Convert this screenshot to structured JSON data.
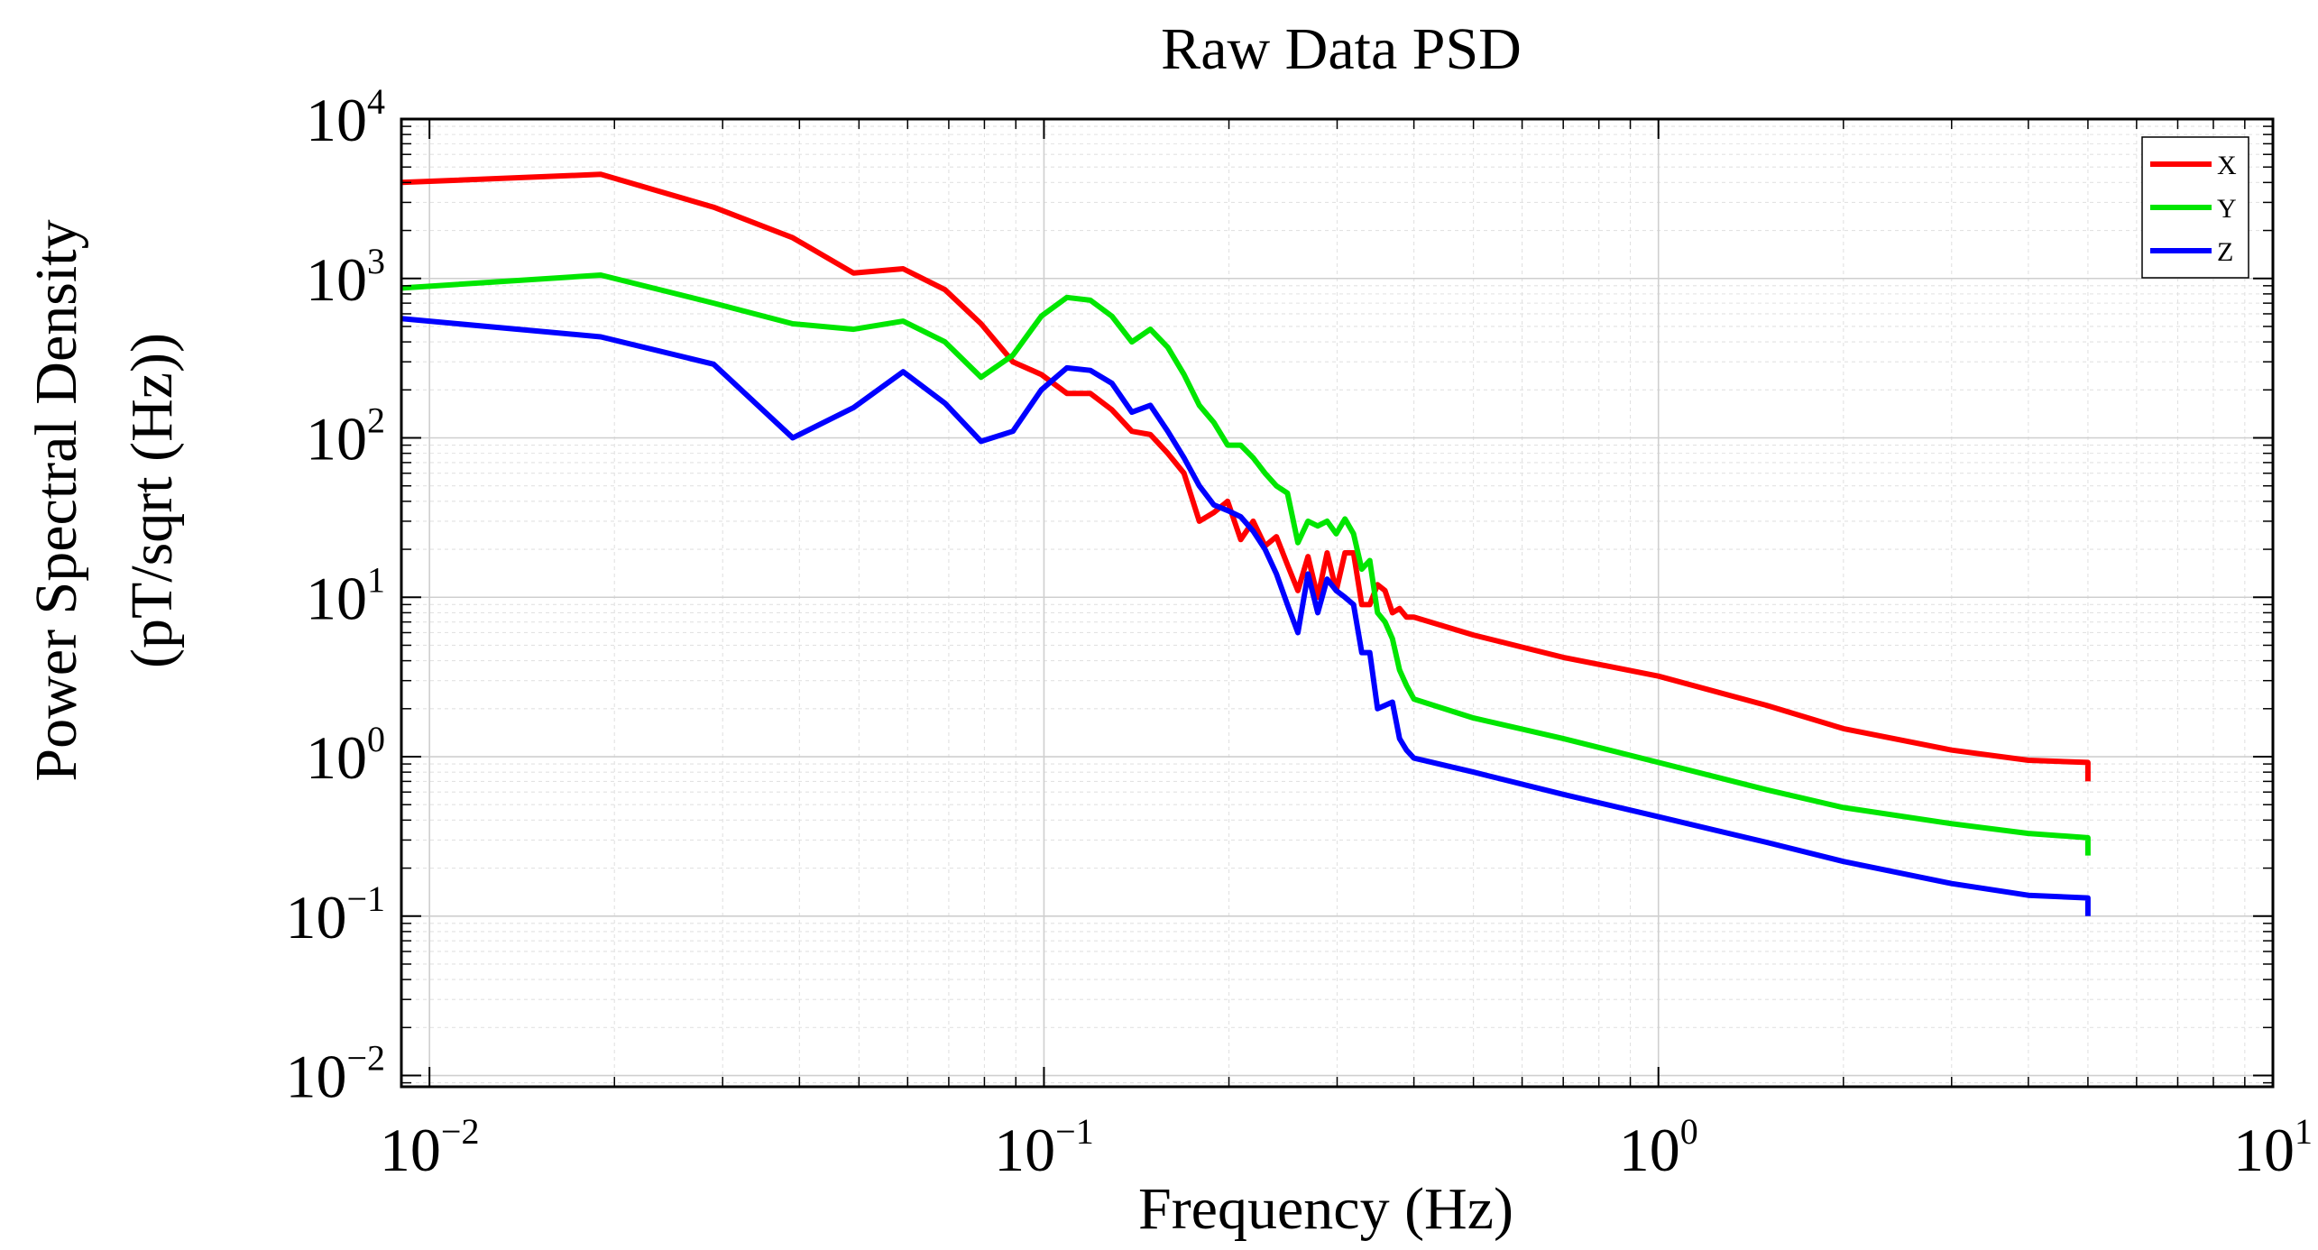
{
  "chart_data": {
    "type": "line",
    "title": "Raw Data PSD",
    "xlabel": "Frequency (Hz)",
    "ylabel_line1": "Power Spectral Density",
    "ylabel_line2": "(pT/sqrt (Hz))",
    "xscale": "log",
    "yscale": "log",
    "xlim": [
      0.009,
      10
    ],
    "ylim": [
      0.0085,
      10000
    ],
    "grid": true,
    "legend_position": "top-right",
    "x_ticks": [
      {
        "base": "10",
        "exp": "−2",
        "value": 0.01
      },
      {
        "base": "10",
        "exp": "−1",
        "value": 0.1
      },
      {
        "base": "10",
        "exp": "0",
        "value": 1
      },
      {
        "base": "10",
        "exp": "1",
        "value": 10
      }
    ],
    "y_ticks": [
      {
        "base": "10",
        "exp": "4",
        "value": 10000
      },
      {
        "base": "10",
        "exp": "3",
        "value": 1000
      },
      {
        "base": "10",
        "exp": "2",
        "value": 100
      },
      {
        "base": "10",
        "exp": "1",
        "value": 10
      },
      {
        "base": "10",
        "exp": "0",
        "value": 1
      },
      {
        "base": "10",
        "exp": "−1",
        "value": 0.1
      },
      {
        "base": "10",
        "exp": "−2",
        "value": 0.01
      }
    ],
    "series": [
      {
        "name": "X",
        "color": "#ff0000",
        "x": [
          0.009,
          0.019,
          0.029,
          0.039,
          0.049,
          0.059,
          0.069,
          0.079,
          0.089,
          0.099,
          0.109,
          0.119,
          0.129,
          0.139,
          0.149,
          0.159,
          0.169,
          0.179,
          0.189,
          0.199,
          0.209,
          0.219,
          0.229,
          0.239,
          0.249,
          0.259,
          0.269,
          0.279,
          0.289,
          0.299,
          0.309,
          0.319,
          0.329,
          0.339,
          0.349,
          0.359,
          0.369,
          0.379,
          0.389,
          0.4,
          0.5,
          0.7,
          1.0,
          1.5,
          2.0,
          3.0,
          4.0,
          5.0,
          5.0
        ],
        "y": [
          4000,
          4500,
          2800,
          1800,
          1080,
          1150,
          850,
          520,
          300,
          250,
          190,
          190,
          150,
          110,
          105,
          80,
          60,
          30,
          34,
          40,
          23,
          30,
          21,
          24,
          16,
          11,
          18,
          10,
          19,
          11,
          19,
          19,
          9,
          9,
          12,
          11,
          8,
          8.5,
          7.5,
          7.5,
          5.8,
          4.2,
          3.2,
          2.1,
          1.5,
          1.1,
          0.95,
          0.92,
          0.7
        ]
      },
      {
        "name": "Y",
        "color": "#00e600",
        "x": [
          0.009,
          0.019,
          0.029,
          0.039,
          0.049,
          0.059,
          0.069,
          0.079,
          0.089,
          0.099,
          0.109,
          0.119,
          0.129,
          0.139,
          0.149,
          0.159,
          0.169,
          0.179,
          0.189,
          0.199,
          0.209,
          0.219,
          0.229,
          0.239,
          0.249,
          0.259,
          0.269,
          0.279,
          0.289,
          0.299,
          0.309,
          0.319,
          0.329,
          0.339,
          0.349,
          0.359,
          0.369,
          0.379,
          0.389,
          0.4,
          0.5,
          0.7,
          1.0,
          1.5,
          2.0,
          3.0,
          4.0,
          5.0,
          5.0
        ],
        "y": [
          870,
          1050,
          700,
          520,
          480,
          540,
          400,
          240,
          330,
          580,
          760,
          730,
          580,
          400,
          480,
          370,
          250,
          160,
          125,
          90,
          90,
          75,
          60,
          50,
          45,
          22,
          30,
          28,
          30,
          25,
          31,
          25,
          15,
          17,
          8,
          7,
          5.5,
          3.5,
          2.8,
          2.3,
          1.75,
          1.3,
          0.92,
          0.62,
          0.48,
          0.38,
          0.33,
          0.31,
          0.24
        ]
      },
      {
        "name": "Z",
        "color": "#0000ff",
        "x": [
          0.009,
          0.019,
          0.029,
          0.039,
          0.049,
          0.059,
          0.069,
          0.079,
          0.089,
          0.099,
          0.109,
          0.119,
          0.129,
          0.139,
          0.149,
          0.159,
          0.169,
          0.179,
          0.189,
          0.199,
          0.209,
          0.219,
          0.229,
          0.239,
          0.249,
          0.259,
          0.269,
          0.279,
          0.289,
          0.299,
          0.309,
          0.319,
          0.329,
          0.339,
          0.349,
          0.359,
          0.369,
          0.379,
          0.389,
          0.4,
          0.5,
          0.7,
          1.0,
          1.5,
          2.0,
          3.0,
          4.0,
          5.0,
          5.0
        ],
        "y": [
          560,
          430,
          290,
          100,
          155,
          260,
          165,
          95,
          110,
          200,
          275,
          265,
          220,
          145,
          160,
          110,
          75,
          50,
          38,
          35,
          32,
          26,
          20,
          14,
          9,
          6,
          14,
          8,
          13,
          11,
          10,
          9,
          4.5,
          4.5,
          2,
          2.1,
          2.2,
          1.3,
          1.1,
          0.98,
          0.8,
          0.58,
          0.42,
          0.29,
          0.22,
          0.16,
          0.135,
          0.13,
          0.1
        ]
      }
    ]
  }
}
